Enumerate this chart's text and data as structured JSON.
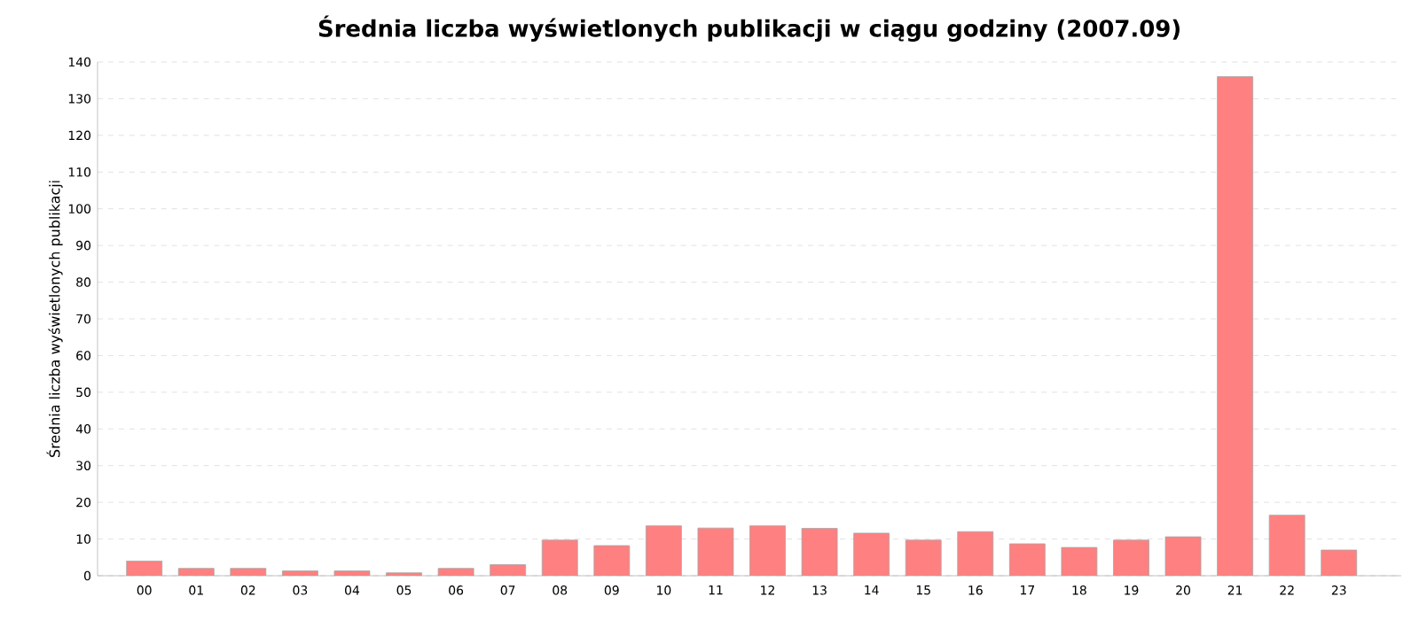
{
  "chart_data": {
    "type": "bar",
    "title": "Średnia liczba wyświetlonych publikacji w ciągu godziny (2007.09)",
    "ylabel": "Średnia liczba wyświetlonych publikacji",
    "categories": [
      "00",
      "01",
      "02",
      "03",
      "04",
      "05",
      "06",
      "07",
      "08",
      "09",
      "10",
      "11",
      "12",
      "13",
      "14",
      "15",
      "16",
      "17",
      "18",
      "19",
      "20",
      "21",
      "22",
      "23"
    ],
    "values": [
      4,
      2,
      2,
      1.3,
      1.3,
      0.8,
      2,
      3,
      9.7,
      8.2,
      13.6,
      13,
      13.6,
      12.9,
      11.6,
      9.7,
      12,
      8.7,
      7.7,
      9.7,
      10.6,
      136,
      16.5,
      7
    ],
    "color": "#ff8080",
    "ylim": [
      0,
      140
    ],
    "yticks": [
      0,
      10,
      20,
      30,
      40,
      50,
      60,
      70,
      80,
      90,
      100,
      110,
      120,
      130,
      140
    ],
    "grid": "y"
  }
}
